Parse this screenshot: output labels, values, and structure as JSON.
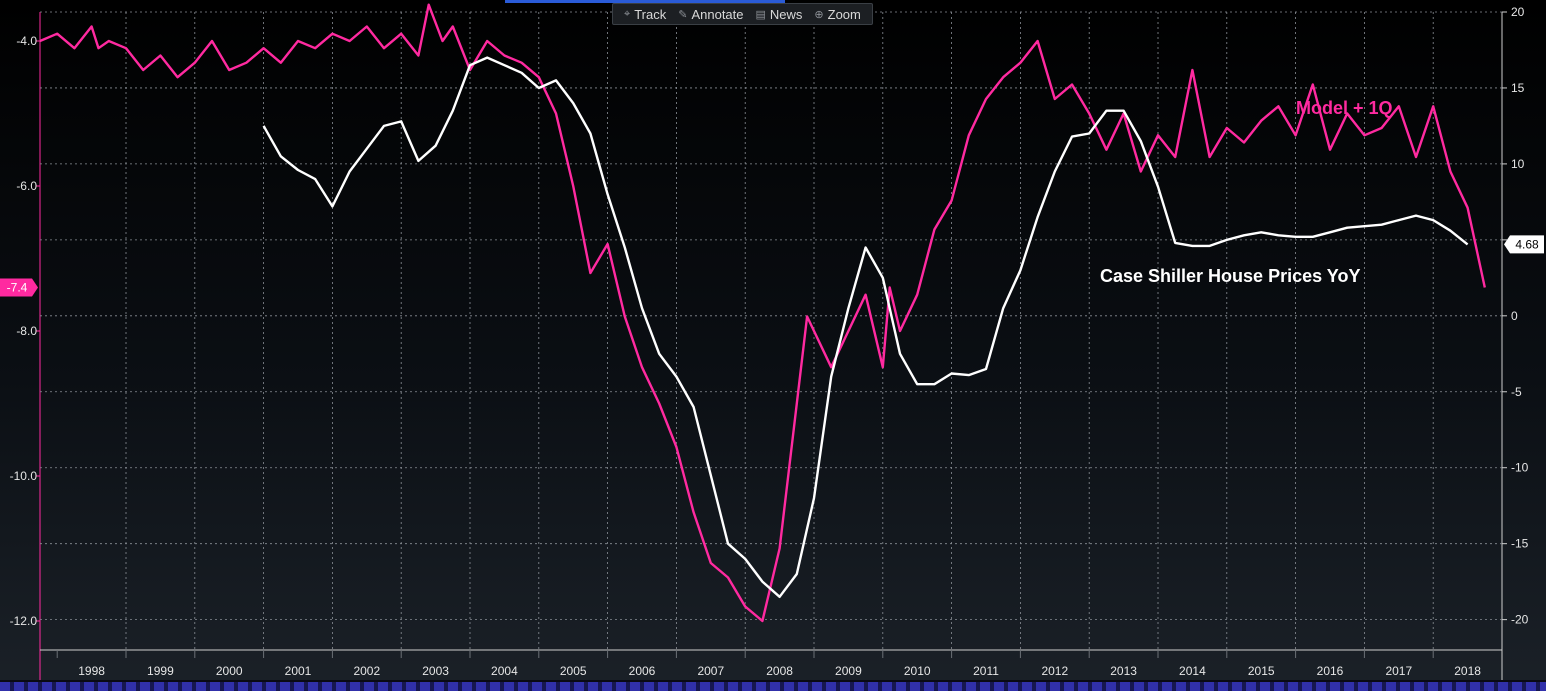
{
  "toolbar": {
    "items": [
      {
        "label": "Track",
        "icon": "crosshair-icon",
        "glyph": "⌖"
      },
      {
        "label": "Annotate",
        "icon": "pencil-icon",
        "glyph": "✎"
      },
      {
        "label": "News",
        "icon": "news-icon",
        "glyph": "▤"
      },
      {
        "label": "Zoom",
        "icon": "zoom-icon",
        "glyph": "⊕"
      }
    ]
  },
  "chart_data": {
    "type": "line",
    "title": "",
    "xlabel": "",
    "x_tick_labels": [
      "1998",
      "1999",
      "2000",
      "2001",
      "2002",
      "2003",
      "2004",
      "2005",
      "2006",
      "2007",
      "2008",
      "2009",
      "2010",
      "2011",
      "2012",
      "2013",
      "2014",
      "2015",
      "2016",
      "2017",
      "2018"
    ],
    "x_range": [
      1997.75,
      2019.0
    ],
    "y_left": {
      "ylim": [
        -12.4,
        -3.6
      ],
      "ticks": [
        -4.0,
        -6.0,
        -8.0,
        -10.0,
        -12.0
      ],
      "tick_labels": [
        "-4.0",
        "-6.0",
        "-8.0",
        "-10.0",
        "-12.0"
      ],
      "inverted": false
    },
    "y_right": {
      "ylim": [
        -22,
        20
      ],
      "ticks": [
        20,
        15,
        10,
        5,
        0,
        -5,
        -10,
        -15,
        -20
      ],
      "tick_labels": [
        "20",
        "15",
        "10",
        "5",
        "0",
        "-5",
        "-10",
        "-15",
        "-20"
      ]
    },
    "grid": true,
    "series": [
      {
        "name": "Model + 1Q",
        "axis": "left",
        "color": "#ff2aa0",
        "last_value_label": "-7.4",
        "x": [
          1997.75,
          1998.0,
          1998.25,
          1998.5,
          1998.6,
          1998.75,
          1999.0,
          1999.25,
          1999.5,
          1999.75,
          2000.0,
          2000.25,
          2000.5,
          2000.75,
          2001.0,
          2001.25,
          2001.5,
          2001.75,
          2002.0,
          2002.25,
          2002.5,
          2002.75,
          2003.0,
          2003.25,
          2003.4,
          2003.6,
          2003.75,
          2004.0,
          2004.25,
          2004.5,
          2004.75,
          2005.0,
          2005.25,
          2005.5,
          2005.75,
          2006.0,
          2006.25,
          2006.5,
          2006.75,
          2007.0,
          2007.25,
          2007.5,
          2007.75,
          2008.0,
          2008.25,
          2008.5,
          2008.75,
          2008.9,
          2009.0,
          2009.25,
          2009.5,
          2009.75,
          2010.0,
          2010.1,
          2010.25,
          2010.5,
          2010.75,
          2011.0,
          2011.25,
          2011.5,
          2011.75,
          2012.0,
          2012.25,
          2012.5,
          2012.75,
          2013.0,
          2013.25,
          2013.5,
          2013.75,
          2014.0,
          2014.25,
          2014.5,
          2014.75,
          2015.0,
          2015.25,
          2015.5,
          2015.75,
          2016.0,
          2016.25,
          2016.5,
          2016.75,
          2017.0,
          2017.25,
          2017.5,
          2017.75,
          2018.0,
          2018.25,
          2018.5,
          2018.75
        ],
        "values": [
          -4.0,
          -3.9,
          -4.1,
          -3.8,
          -4.1,
          -4.0,
          -4.1,
          -4.4,
          -4.2,
          -4.5,
          -4.3,
          -4.0,
          -4.4,
          -4.3,
          -4.1,
          -4.3,
          -4.0,
          -4.1,
          -3.9,
          -4.0,
          -3.8,
          -4.1,
          -3.9,
          -4.2,
          -3.5,
          -4.0,
          -3.8,
          -4.4,
          -4.0,
          -4.2,
          -4.3,
          -4.5,
          -5.0,
          -6.0,
          -7.2,
          -6.8,
          -7.8,
          -8.5,
          -9.0,
          -9.6,
          -10.5,
          -11.2,
          -11.4,
          -11.8,
          -12.0,
          -11.0,
          -9.0,
          -7.8,
          -8.0,
          -8.5,
          -8.0,
          -7.5,
          -8.5,
          -7.4,
          -8.0,
          -7.5,
          -6.6,
          -6.2,
          -5.3,
          -4.8,
          -4.5,
          -4.3,
          -4.0,
          -4.8,
          -4.6,
          -5.0,
          -5.5,
          -5.0,
          -5.8,
          -5.3,
          -5.6,
          -4.4,
          -5.6,
          -5.2,
          -5.4,
          -5.1,
          -4.9,
          -5.3,
          -4.6,
          -5.5,
          -5.0,
          -5.3,
          -5.2,
          -4.9,
          -5.6,
          -4.9,
          -5.8,
          -6.3,
          -7.4
        ]
      },
      {
        "name": "Case Shiller House Prices YoY",
        "axis": "right",
        "color": "#ffffff",
        "last_value_label": "4.68",
        "x": [
          2001.0,
          2001.25,
          2001.5,
          2001.75,
          2002.0,
          2002.25,
          2002.5,
          2002.75,
          2003.0,
          2003.25,
          2003.5,
          2003.75,
          2004.0,
          2004.25,
          2004.5,
          2004.75,
          2005.0,
          2005.25,
          2005.5,
          2005.75,
          2006.0,
          2006.25,
          2006.5,
          2006.75,
          2007.0,
          2007.25,
          2007.5,
          2007.75,
          2008.0,
          2008.25,
          2008.5,
          2008.75,
          2009.0,
          2009.25,
          2009.5,
          2009.75,
          2010.0,
          2010.25,
          2010.5,
          2010.75,
          2011.0,
          2011.25,
          2011.5,
          2011.75,
          2012.0,
          2012.25,
          2012.5,
          2012.75,
          2013.0,
          2013.25,
          2013.5,
          2013.75,
          2014.0,
          2014.25,
          2014.5,
          2014.75,
          2015.0,
          2015.25,
          2015.5,
          2015.75,
          2016.0,
          2016.25,
          2016.5,
          2016.75,
          2017.0,
          2017.25,
          2017.5,
          2017.75,
          2018.0,
          2018.25,
          2018.5
        ],
        "values": [
          12.5,
          10.5,
          9.6,
          9.0,
          7.2,
          9.5,
          11.0,
          12.5,
          12.8,
          10.2,
          11.2,
          13.5,
          16.5,
          17.0,
          16.5,
          16.0,
          15.0,
          15.5,
          14.0,
          12.0,
          8.0,
          4.5,
          0.5,
          -2.5,
          -4.0,
          -6.0,
          -10.5,
          -15.0,
          -16.0,
          -17.5,
          -18.5,
          -17.0,
          -12.0,
          -4.0,
          0.5,
          4.5,
          2.5,
          -2.5,
          -4.5,
          -4.5,
          -3.8,
          -3.9,
          -3.5,
          0.5,
          3.0,
          6.5,
          9.5,
          11.8,
          12.0,
          13.5,
          13.5,
          11.5,
          8.5,
          4.8,
          4.6,
          4.6,
          5.0,
          5.3,
          5.5,
          5.3,
          5.2,
          5.2,
          5.5,
          5.8,
          5.9,
          6.0,
          6.3,
          6.6,
          6.3,
          5.6,
          4.7
        ]
      }
    ],
    "annotations": [
      {
        "text": "Model + 1Q",
        "color": "#ff2aa0"
      },
      {
        "text": "Case Shiller House Prices YoY",
        "color": "#ffffff"
      }
    ]
  }
}
